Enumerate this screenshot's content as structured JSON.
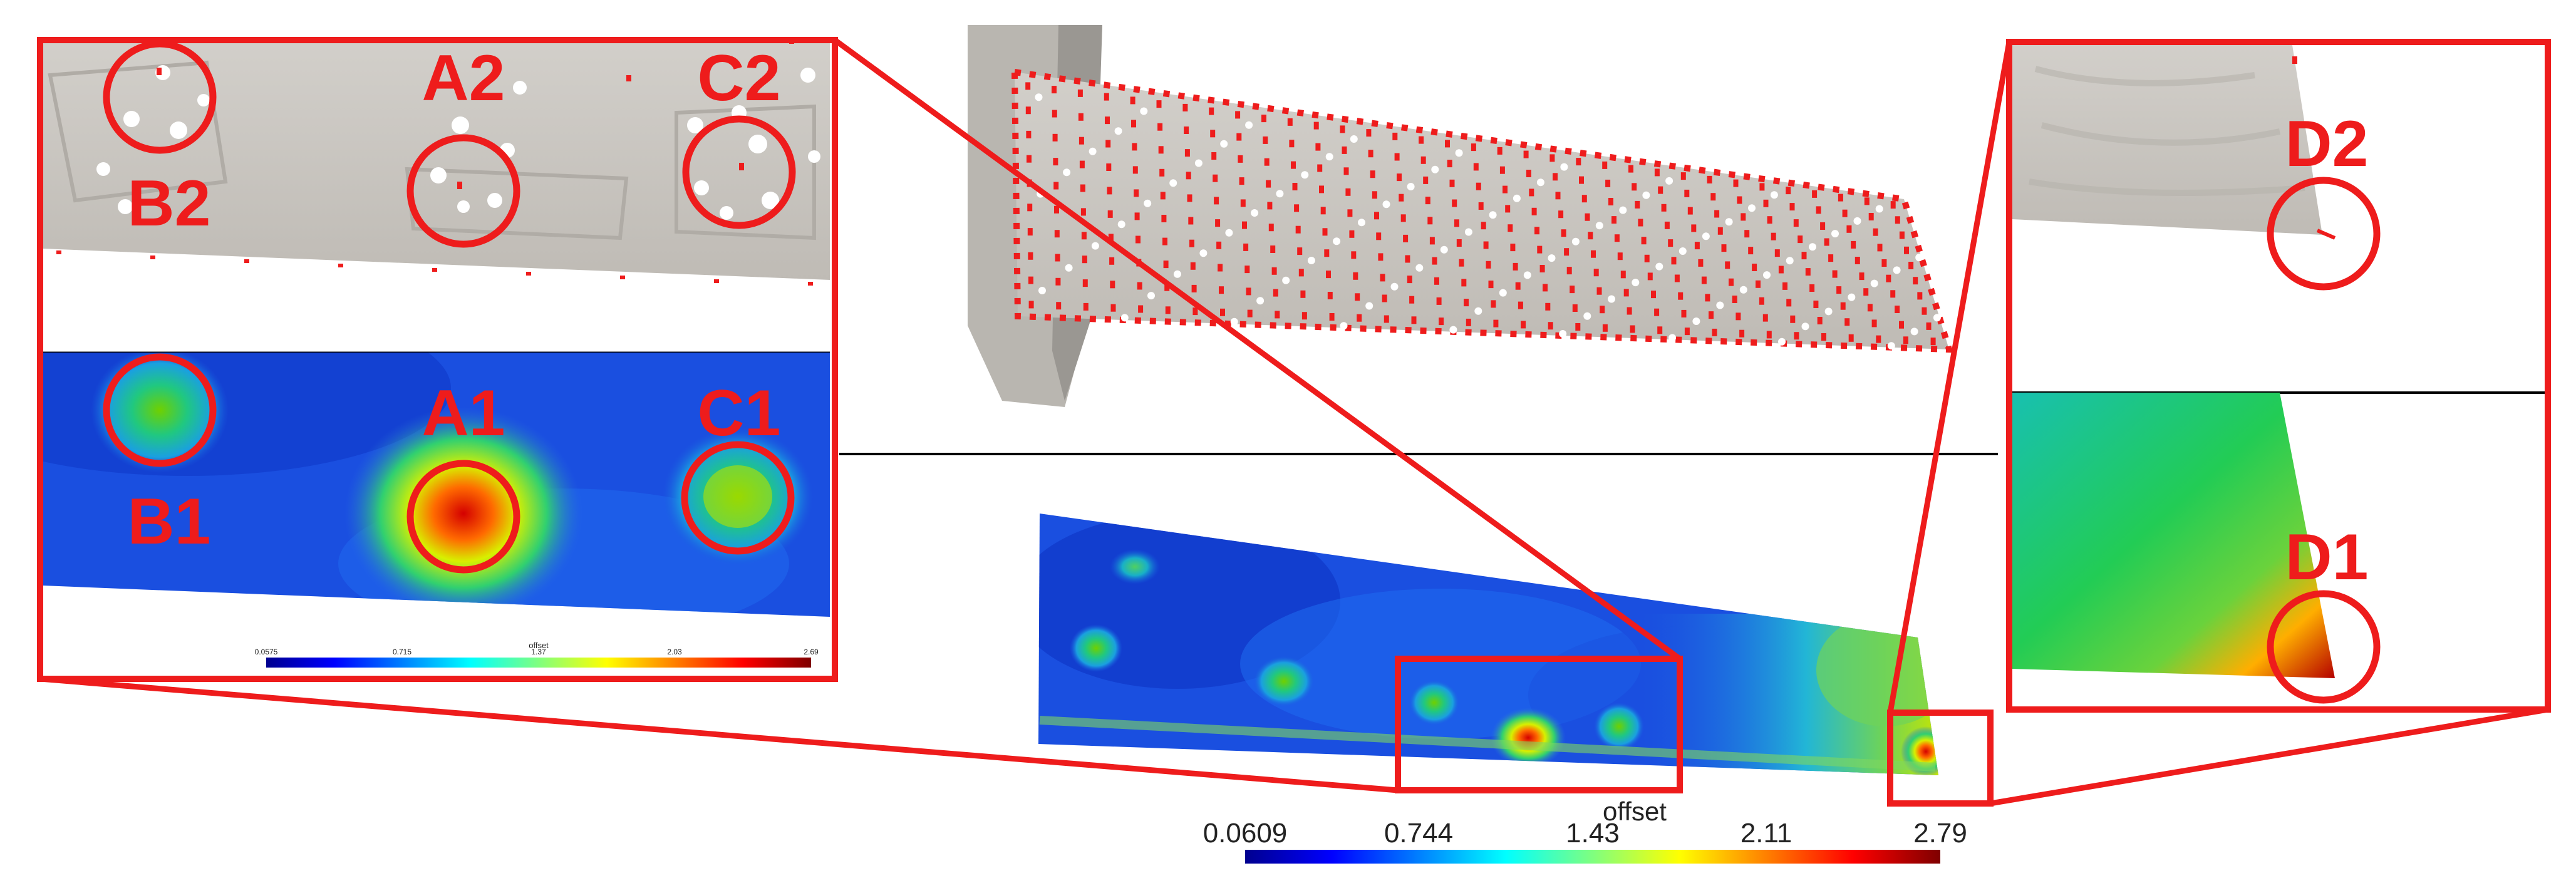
{
  "colors": {
    "highlight": "#ee1c1c",
    "divider": "#000000",
    "surface_gray": "#c9c6c0"
  },
  "callouts": {
    "A1": "A1",
    "A2": "A2",
    "B1": "B1",
    "B2": "B2",
    "C1": "C1",
    "C2": "C2",
    "D1": "D1",
    "D2": "D2"
  },
  "main_colorbar": {
    "title": "offset",
    "ticks": [
      "0.0609",
      "0.744",
      "1.43",
      "2.11",
      "2.79"
    ],
    "colormap": "rainbow-jet"
  },
  "inset_colorbar": {
    "title": "offset",
    "ticks": [
      "0.0575",
      "0.715",
      "1.37",
      "2.03",
      "2.69"
    ]
  }
}
